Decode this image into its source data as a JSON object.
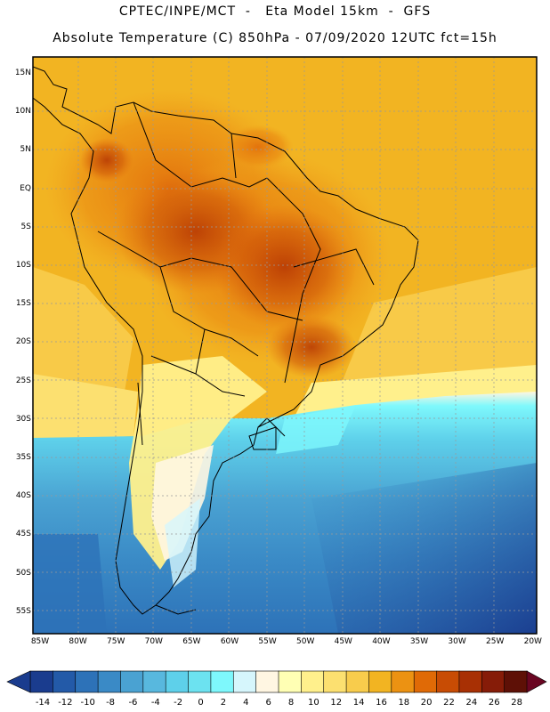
{
  "header": {
    "line1": "CPTEC/INPE/MCT  -   Eta Model 15km  -  GFS",
    "line2": "Absolute Temperature (C) 850hPa - 07/09/2020 12UTC fct=15h"
  },
  "map": {
    "lat_labels": [
      "15N",
      "10N",
      "5N",
      "EQ",
      "5S",
      "10S",
      "15S",
      "20S",
      "25S",
      "30S",
      "35S",
      "40S",
      "45S",
      "50S",
      "55S"
    ],
    "lon_labels": [
      "85W",
      "80W",
      "75W",
      "70W",
      "65W",
      "60W",
      "55W",
      "50W",
      "45W",
      "40W",
      "35W",
      "30W",
      "25W",
      "20W"
    ]
  },
  "colorbar": {
    "labels": [
      "-14",
      "-12",
      "-10",
      "-8",
      "-6",
      "-4",
      "-2",
      "0",
      "2",
      "4",
      "6",
      "8",
      "10",
      "12",
      "14",
      "16",
      "18",
      "20",
      "22",
      "24",
      "26",
      "28"
    ],
    "colors": [
      "#1a3c8e",
      "#235aa8",
      "#2d72b8",
      "#3a8ac6",
      "#4aa2d2",
      "#58b8de",
      "#5ed0ea",
      "#6ce2f0",
      "#7ef8fc",
      "#d6f6fc",
      "#fff6e2",
      "#ffffb4",
      "#fff08c",
      "#fce070",
      "#f8cc4c",
      "#f2b422",
      "#ec9212",
      "#e06a06",
      "#c84c04",
      "#a83004",
      "#861c08",
      "#5e1006"
    ],
    "left_arrow": "#1a3c8e",
    "right_arrow": "#6a0622"
  }
}
